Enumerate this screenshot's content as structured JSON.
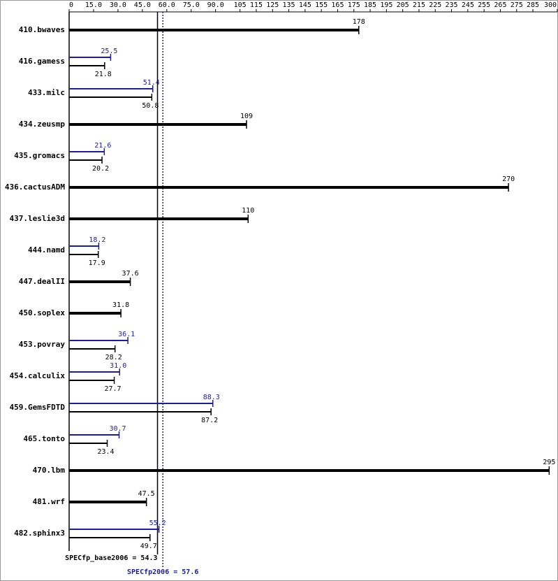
{
  "chart_data": {
    "type": "bar",
    "categories": [
      "410.bwaves",
      "416.gamess",
      "433.milc",
      "434.zeusmp",
      "435.gromacs",
      "436.cactusADM",
      "437.leslie3d",
      "444.namd",
      "447.dealII",
      "450.soplex",
      "453.povray",
      "454.calculix",
      "459.GemsFDTD",
      "465.tonto",
      "470.lbm",
      "481.wrf",
      "482.sphinx3"
    ],
    "series": [
      {
        "color": "#000000",
        "values": [
          178,
          21.8,
          50.8,
          109,
          20.2,
          270,
          110,
          17.9,
          37.6,
          31.8,
          28.2,
          27.7,
          87.2,
          23.4,
          295,
          47.5,
          49.7
        ]
      },
      {
        "color": "#1f1f8c",
        "values": [
          null,
          25.5,
          51.4,
          null,
          21.6,
          null,
          null,
          18.2,
          null,
          null,
          36.1,
          31.0,
          88.3,
          30.7,
          null,
          null,
          55.2
        ],
        "value_labels": [
          null,
          "25.5",
          "51.4",
          null,
          "21.6",
          null,
          null,
          "18.2",
          null,
          null,
          "36.1",
          "31.0",
          "88.3",
          "30.7",
          null,
          null,
          "55.2"
        ]
      }
    ],
    "xlim": [
      0,
      300
    ],
    "xticks": [
      0,
      {
        "value": 15,
        "label": "15.0"
      },
      {
        "value": 30,
        "label": "30.0"
      },
      {
        "value": 45,
        "label": "45.0"
      },
      {
        "value": 60,
        "label": "60.0"
      },
      {
        "value": 75,
        "label": "75.0"
      },
      {
        "value": 90,
        "label": "90.0"
      },
      105,
      115,
      125,
      135,
      145,
      155,
      165,
      175,
      185,
      195,
      205,
      215,
      225,
      235,
      245,
      255,
      265,
      275,
      285,
      300
    ],
    "reference_lines": [
      {
        "label": "SPECfp_base2006 = 54.3",
        "value": 54.3,
        "color": "#000000",
        "style": "solid"
      },
      {
        "label": "SPECfp2006 = 57.6",
        "value": 57.6,
        "color": "#1f1f8c",
        "style": "dotted"
      }
    ]
  }
}
